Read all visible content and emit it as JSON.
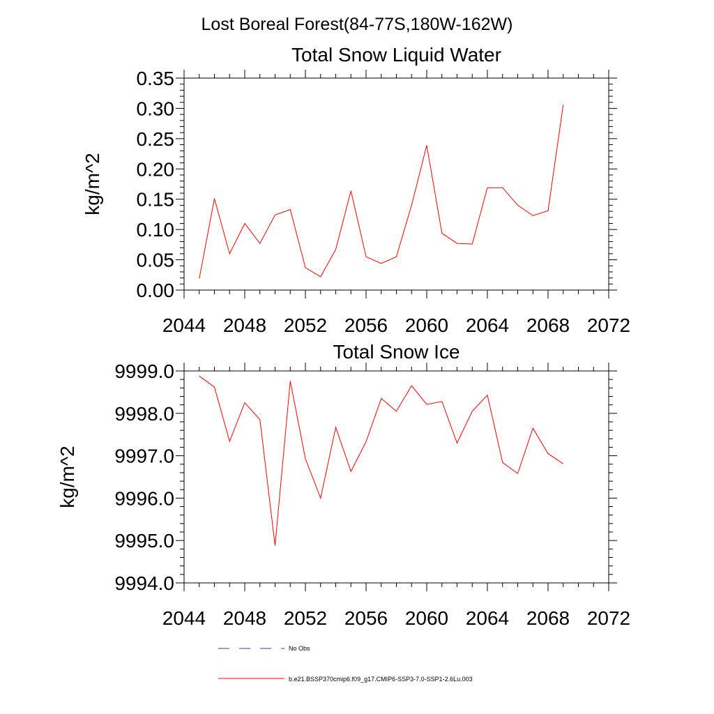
{
  "suptitle": "Lost Boreal Forest(84-77S,180W-162W)",
  "legend": {
    "placement": "bottom",
    "entries": [
      {
        "label": "No Obs",
        "style": "dashed",
        "color": "#3a3aa0"
      },
      {
        "label": "b.e21.BSSP370cmip6.f09_g17.CMIP6-SSP3-7.0-SSP1-2.6Lu.003",
        "style": "solid",
        "color": "#ff0000"
      }
    ]
  },
  "chart_data": [
    {
      "type": "line",
      "title": "Total Snow Liquid Water",
      "xlabel": "",
      "ylabel": "kg/m^2",
      "xlim": [
        2044,
        2072
      ],
      "ylim": [
        0,
        0.35
      ],
      "xticks": [
        2044,
        2048,
        2052,
        2056,
        2060,
        2064,
        2068,
        2072
      ],
      "xtick_labels": [
        "2044",
        "2048",
        "2052",
        "2056",
        "2060",
        "2064",
        "2068",
        "2072"
      ],
      "yticks": [
        0,
        0.05,
        0.1,
        0.15,
        0.2,
        0.25,
        0.3,
        0.35
      ],
      "ytick_labels": [
        "0.00",
        "0.05",
        "0.10",
        "0.15",
        "0.20",
        "0.25",
        "0.30",
        "0.35"
      ],
      "grid": false,
      "series": [
        {
          "name": "b.e21.BSSP370cmip6.f09_g17.CMIP6-SSP3-7.0-SSP1-2.6Lu.003",
          "color": "#ff0000",
          "x": [
            2045,
            2046,
            2047,
            2048,
            2049,
            2050,
            2051,
            2052,
            2053,
            2054,
            2055,
            2056,
            2057,
            2058,
            2059,
            2060,
            2061,
            2062,
            2063,
            2064,
            2065,
            2066,
            2067,
            2068,
            2069
          ],
          "y": [
            0.019,
            0.151,
            0.06,
            0.11,
            0.077,
            0.124,
            0.133,
            0.037,
            0.022,
            0.067,
            0.164,
            0.055,
            0.044,
            0.055,
            0.14,
            0.239,
            0.094,
            0.077,
            0.076,
            0.169,
            0.169,
            0.14,
            0.123,
            0.131,
            0.306
          ]
        }
      ]
    },
    {
      "type": "line",
      "title": "Total Snow Ice",
      "xlabel": "",
      "ylabel": "kg/m^2",
      "xlim": [
        2044,
        2072
      ],
      "ylim": [
        9994.0,
        9999.0
      ],
      "xticks": [
        2044,
        2048,
        2052,
        2056,
        2060,
        2064,
        2068,
        2072
      ],
      "xtick_labels": [
        "2044",
        "2048",
        "2052",
        "2056",
        "2060",
        "2064",
        "2068",
        "2072"
      ],
      "yticks": [
        9994,
        9995,
        9996,
        9997,
        9998,
        9999
      ],
      "ytick_labels": [
        "9994.0",
        "9995.0",
        "9996.0",
        "9997.0",
        "9998.0",
        "9999.0"
      ],
      "grid": false,
      "series": [
        {
          "name": "b.e21.BSSP370cmip6.f09_g17.CMIP6-SSP3-7.0-SSP1-2.6Lu.003",
          "color": "#ff0000",
          "x": [
            2045,
            2046,
            2047,
            2048,
            2049,
            2050,
            2051,
            2052,
            2053,
            2054,
            2055,
            2056,
            2057,
            2058,
            2059,
            2060,
            2061,
            2062,
            2063,
            2064,
            2065,
            2066,
            2067,
            2068,
            2069
          ],
          "y": [
            9998.88,
            9998.62,
            9997.34,
            9998.25,
            9997.85,
            9994.88,
            9998.76,
            9996.93,
            9996.0,
            9997.67,
            9996.63,
            9997.33,
            9998.35,
            9998.05,
            9998.65,
            9998.21,
            9998.28,
            9997.3,
            9998.05,
            9998.43,
            9996.84,
            9996.58,
            9997.65,
            9997.05,
            9996.81
          ]
        }
      ]
    }
  ]
}
